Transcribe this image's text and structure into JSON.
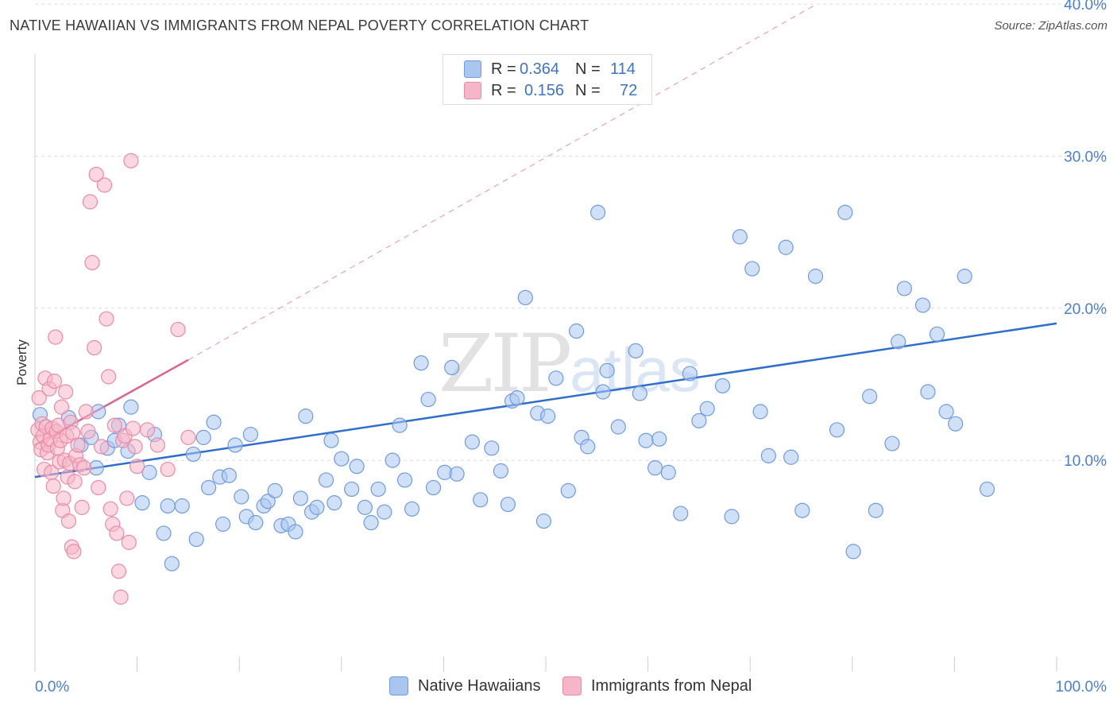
{
  "title": "NATIVE HAWAIIAN VS IMMIGRANTS FROM NEPAL POVERTY CORRELATION CHART",
  "source": "Source: ZipAtlas.com",
  "watermark": {
    "zip": "ZIP",
    "atlas": "atlas"
  },
  "colors": {
    "blue_fill": "#a9c6ee",
    "blue_stroke": "#6f9be0",
    "blue_line": "#2f6fcc",
    "pink_fill": "#f6b6c9",
    "pink_stroke": "#ea8aa8",
    "pink_line": "#e0628c",
    "grid": "#dddddd",
    "tick": "#4a7fd0"
  },
  "legend": {
    "rows": [
      {
        "r_label": "R =",
        "r_value": "0.364",
        "n_label": "N =",
        "n_value": "114",
        "color": "#a9c6ee"
      },
      {
        "r_label": "R =",
        "r_value": "0.156",
        "n_label": "N =",
        "n_value": "72",
        "color": "#f6b6c9"
      }
    ]
  },
  "bottom_legend": [
    {
      "label": "Native Hawaiians",
      "color": "#a9c6ee"
    },
    {
      "label": "Immigrants from Nepal",
      "color": "#f6b6c9"
    }
  ],
  "chart_data": {
    "type": "scatter",
    "title": "NATIVE HAWAIIAN VS IMMIGRANTS FROM NEPAL POVERTY CORRELATION CHART",
    "xlabel": "",
    "ylabel": "Poverty",
    "xlim": [
      0,
      100
    ],
    "ylim": [
      0,
      40
    ],
    "x_tick_labels": [
      "0.0%",
      "100.0%"
    ],
    "y_ticks": [
      10,
      20,
      30,
      40
    ],
    "y_tick_labels": [
      "10.0%",
      "20.0%",
      "30.0%",
      "40.0%"
    ],
    "grid": true,
    "legend_position": "top-center",
    "series": [
      {
        "name": "Native Hawaiians",
        "color": "#a9c6ee",
        "points": [
          [
            0.5,
            13.0
          ],
          [
            3.3,
            12.8
          ],
          [
            4.5,
            11.0
          ],
          [
            5.5,
            11.5
          ],
          [
            6.2,
            13.2
          ],
          [
            7.1,
            10.8
          ],
          [
            6.0,
            9.5
          ],
          [
            7.8,
            11.3
          ],
          [
            8.2,
            12.3
          ],
          [
            9.1,
            10.6
          ],
          [
            9.4,
            13.5
          ],
          [
            10.5,
            7.2
          ],
          [
            11.2,
            9.2
          ],
          [
            11.7,
            11.7
          ],
          [
            12.6,
            5.2
          ],
          [
            13.0,
            7.0
          ],
          [
            13.4,
            3.2
          ],
          [
            14.4,
            7.0
          ],
          [
            15.5,
            10.4
          ],
          [
            15.8,
            4.8
          ],
          [
            16.5,
            11.5
          ],
          [
            17.0,
            8.2
          ],
          [
            17.5,
            12.5
          ],
          [
            18.1,
            8.9
          ],
          [
            18.4,
            5.8
          ],
          [
            19.0,
            9.0
          ],
          [
            19.6,
            11.0
          ],
          [
            20.2,
            7.6
          ],
          [
            20.7,
            6.3
          ],
          [
            21.1,
            11.7
          ],
          [
            21.6,
            5.9
          ],
          [
            22.4,
            7.0
          ],
          [
            22.8,
            7.3
          ],
          [
            23.5,
            8.0
          ],
          [
            24.1,
            5.7
          ],
          [
            24.8,
            5.8
          ],
          [
            25.5,
            5.3
          ],
          [
            26.0,
            7.5
          ],
          [
            26.5,
            12.9
          ],
          [
            27.1,
            6.6
          ],
          [
            27.6,
            6.9
          ],
          [
            28.5,
            8.7
          ],
          [
            29.0,
            11.3
          ],
          [
            29.3,
            7.2
          ],
          [
            30.0,
            10.1
          ],
          [
            31.0,
            8.1
          ],
          [
            31.5,
            9.6
          ],
          [
            32.3,
            6.9
          ],
          [
            32.9,
            5.9
          ],
          [
            33.6,
            8.1
          ],
          [
            34.2,
            6.6
          ],
          [
            35.0,
            10.0
          ],
          [
            35.7,
            12.3
          ],
          [
            36.2,
            8.7
          ],
          [
            36.9,
            6.8
          ],
          [
            37.8,
            16.4
          ],
          [
            38.5,
            14.0
          ],
          [
            39.0,
            8.2
          ],
          [
            40.1,
            9.2
          ],
          [
            40.8,
            16.1
          ],
          [
            41.3,
            9.1
          ],
          [
            42.8,
            11.2
          ],
          [
            43.6,
            7.4
          ],
          [
            44.7,
            10.8
          ],
          [
            45.6,
            9.3
          ],
          [
            46.3,
            7.1
          ],
          [
            46.7,
            13.9
          ],
          [
            47.2,
            14.1
          ],
          [
            48.0,
            20.7
          ],
          [
            49.2,
            13.1
          ],
          [
            49.8,
            6.0
          ],
          [
            50.2,
            12.9
          ],
          [
            51.0,
            15.4
          ],
          [
            52.2,
            8.0
          ],
          [
            53.0,
            18.5
          ],
          [
            53.5,
            11.5
          ],
          [
            54.1,
            10.9
          ],
          [
            55.1,
            26.3
          ],
          [
            55.6,
            14.5
          ],
          [
            56.0,
            15.9
          ],
          [
            57.1,
            12.2
          ],
          [
            58.8,
            17.2
          ],
          [
            59.2,
            14.4
          ],
          [
            59.8,
            11.3
          ],
          [
            60.7,
            9.5
          ],
          [
            61.1,
            11.4
          ],
          [
            62.0,
            9.2
          ],
          [
            63.2,
            6.5
          ],
          [
            64.1,
            15.7
          ],
          [
            65.0,
            12.6
          ],
          [
            65.8,
            13.4
          ],
          [
            67.3,
            14.9
          ],
          [
            68.2,
            6.3
          ],
          [
            69.0,
            24.7
          ],
          [
            70.2,
            22.6
          ],
          [
            71.0,
            13.2
          ],
          [
            71.8,
            10.3
          ],
          [
            73.5,
            24.0
          ],
          [
            74.0,
            10.2
          ],
          [
            75.1,
            6.7
          ],
          [
            76.4,
            22.1
          ],
          [
            78.5,
            12.0
          ],
          [
            79.3,
            26.3
          ],
          [
            80.1,
            4.0
          ],
          [
            81.7,
            14.2
          ],
          [
            82.3,
            6.7
          ],
          [
            83.9,
            11.1
          ],
          [
            84.5,
            17.8
          ],
          [
            85.1,
            21.3
          ],
          [
            86.9,
            20.2
          ],
          [
            87.4,
            14.5
          ],
          [
            88.3,
            18.3
          ],
          [
            89.2,
            13.2
          ],
          [
            90.1,
            12.4
          ],
          [
            91.0,
            22.1
          ],
          [
            93.2,
            8.1
          ]
        ]
      },
      {
        "name": "Immigrants from Nepal",
        "color": "#f6b6c9",
        "points": [
          [
            0.3,
            12.0
          ],
          [
            0.4,
            14.1
          ],
          [
            0.5,
            11.2
          ],
          [
            0.6,
            10.7
          ],
          [
            0.7,
            12.4
          ],
          [
            0.8,
            11.6
          ],
          [
            0.9,
            9.4
          ],
          [
            1.0,
            15.4
          ],
          [
            1.1,
            12.2
          ],
          [
            1.2,
            10.5
          ],
          [
            1.3,
            11.0
          ],
          [
            1.4,
            14.7
          ],
          [
            1.5,
            11.4
          ],
          [
            1.6,
            9.2
          ],
          [
            1.7,
            12.1
          ],
          [
            1.8,
            8.3
          ],
          [
            1.9,
            15.2
          ],
          [
            2.0,
            18.1
          ],
          [
            2.1,
            11.9
          ],
          [
            2.2,
            10.8
          ],
          [
            2.3,
            12.3
          ],
          [
            2.4,
            9.9
          ],
          [
            2.5,
            11.3
          ],
          [
            2.6,
            13.5
          ],
          [
            2.7,
            6.7
          ],
          [
            2.8,
            7.5
          ],
          [
            2.9,
            10.0
          ],
          [
            3.0,
            14.5
          ],
          [
            3.1,
            11.6
          ],
          [
            3.2,
            8.9
          ],
          [
            3.3,
            6.0
          ],
          [
            3.4,
            9.8
          ],
          [
            3.5,
            12.5
          ],
          [
            3.6,
            4.3
          ],
          [
            3.7,
            11.8
          ],
          [
            3.8,
            4.0
          ],
          [
            3.9,
            8.6
          ],
          [
            4.0,
            10.3
          ],
          [
            4.2,
            11.0
          ],
          [
            4.4,
            9.7
          ],
          [
            4.6,
            6.9
          ],
          [
            4.8,
            9.5
          ],
          [
            5.0,
            13.2
          ],
          [
            5.2,
            11.9
          ],
          [
            5.4,
            27.0
          ],
          [
            5.6,
            23.0
          ],
          [
            5.8,
            17.4
          ],
          [
            6.0,
            28.8
          ],
          [
            6.2,
            8.2
          ],
          [
            6.5,
            10.9
          ],
          [
            6.8,
            28.1
          ],
          [
            7.0,
            19.3
          ],
          [
            7.2,
            15.5
          ],
          [
            7.4,
            6.8
          ],
          [
            7.6,
            5.8
          ],
          [
            7.8,
            12.3
          ],
          [
            8.0,
            5.2
          ],
          [
            8.2,
            2.7
          ],
          [
            8.4,
            1.0
          ],
          [
            8.6,
            11.3
          ],
          [
            8.8,
            11.6
          ],
          [
            9.0,
            7.5
          ],
          [
            9.2,
            4.6
          ],
          [
            9.4,
            29.7
          ],
          [
            9.6,
            12.1
          ],
          [
            9.8,
            10.9
          ],
          [
            10.0,
            9.6
          ],
          [
            11.0,
            12.0
          ],
          [
            12.0,
            11.0
          ],
          [
            13.0,
            9.4
          ],
          [
            14.0,
            18.6
          ],
          [
            15.0,
            11.5
          ]
        ]
      }
    ],
    "trend_lines": [
      {
        "series": "Native Hawaiians",
        "x": [
          0,
          100
        ],
        "y": [
          8.9,
          19.0
        ],
        "style": "solid",
        "color": "#2f6fcc"
      },
      {
        "series": "Immigrants from Nepal",
        "x": [
          0,
          15
        ],
        "y": [
          11.0,
          16.6
        ],
        "style": "solid",
        "color": "#e0628c"
      },
      {
        "series": "Immigrants from Nepal",
        "x": [
          15,
          76.5
        ],
        "y": [
          16.6,
          40.0
        ],
        "style": "dashed",
        "color": "#e0628c"
      }
    ]
  }
}
